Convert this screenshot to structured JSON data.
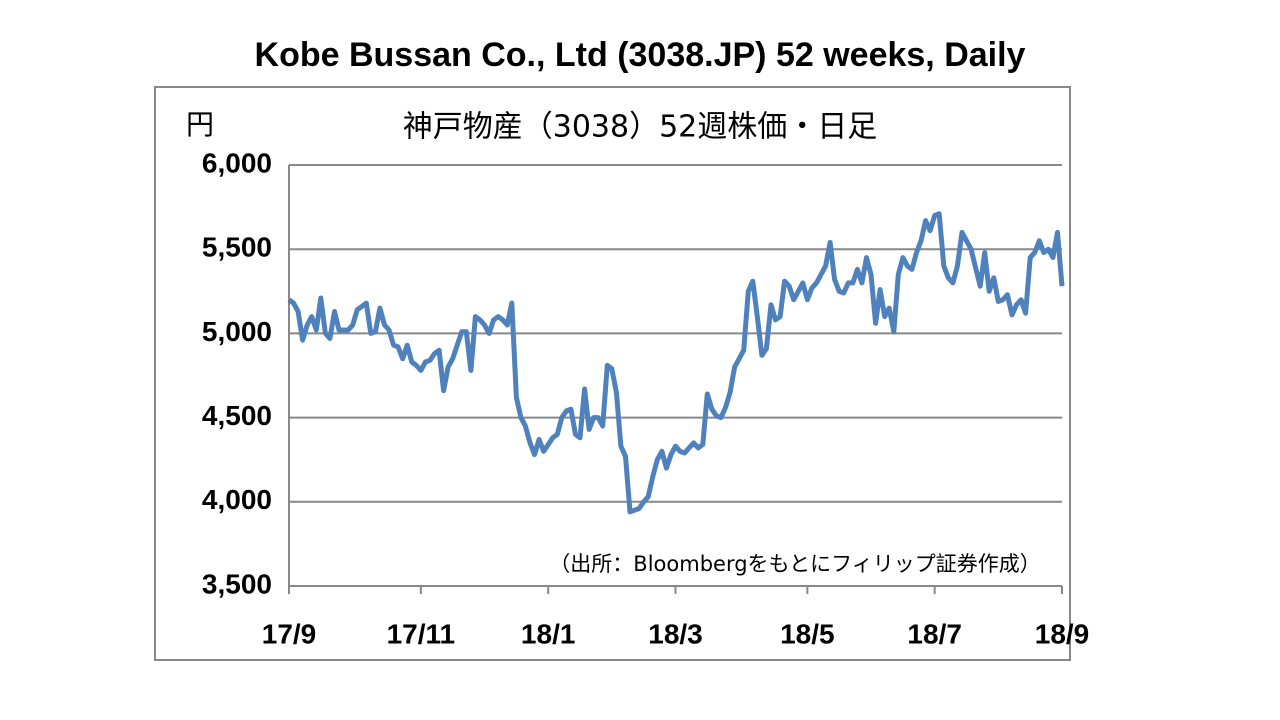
{
  "chart_data": {
    "type": "line",
    "title": "Kobe Bussan Co., Ltd (3038.JP) 52 weeks, Daily",
    "subtitle": "神戸物産（3038）52週株価・日足",
    "y_label": "円",
    "annotation": "（出所：Bloombergをもとにフィリップ証券作成）",
    "color": "#4f81bd",
    "grid": true,
    "values": [
      5200,
      5180,
      5130,
      4960,
      5050,
      5100,
      5020,
      5210,
      5000,
      4970,
      5130,
      5020,
      5020,
      5020,
      5050,
      5140,
      5160,
      5180,
      5000,
      5010,
      5150,
      5050,
      5020,
      4930,
      4920,
      4850,
      4930,
      4830,
      4810,
      4780,
      4830,
      4840,
      4880,
      4900,
      4660,
      4800,
      4850,
      4930,
      5010,
      5010,
      4780,
      5100,
      5080,
      5050,
      5000,
      5080,
      5100,
      5080,
      5050,
      5180,
      4620,
      4500,
      4450,
      4350,
      4280,
      4370,
      4300,
      4340,
      4380,
      4400,
      4500,
      4540,
      4550,
      4400,
      4380,
      4670,
      4430,
      4500,
      4500,
      4450,
      4810,
      4790,
      4650,
      4330,
      4270,
      3940,
      3950,
      3960,
      4000,
      4030,
      4150,
      4250,
      4300,
      4200,
      4280,
      4330,
      4300,
      4290,
      4320,
      4350,
      4320,
      4340,
      4640,
      4550,
      4510,
      4500,
      4560,
      4650,
      4800,
      4850,
      4900,
      5250,
      5310,
      5100,
      4870,
      4910,
      5170,
      5080,
      5100,
      5310,
      5280,
      5200,
      5250,
      5300,
      5200,
      5270,
      5300,
      5350,
      5400,
      5540,
      5320,
      5250,
      5240,
      5300,
      5300,
      5380,
      5300,
      5450,
      5350,
      5060,
      5260,
      5100,
      5150,
      5010,
      5350,
      5450,
      5400,
      5380,
      5480,
      5550,
      5670,
      5610,
      5700,
      5710,
      5400,
      5330,
      5300,
      5400,
      5600,
      5550,
      5500,
      5390,
      5280,
      5480,
      5250,
      5330,
      5190,
      5200,
      5230,
      5110,
      5170,
      5200,
      5120,
      5450,
      5480,
      5550,
      5480,
      5500,
      5450,
      5600,
      5280
    ],
    "xlim": [
      0,
      170
    ],
    "xticks": [
      {
        "value": 0,
        "label": "17/9"
      },
      {
        "value": 29,
        "label": "17/11"
      },
      {
        "value": 57,
        "label": "18/1"
      },
      {
        "value": 85,
        "label": "18/3"
      },
      {
        "value": 114,
        "label": "18/5"
      },
      {
        "value": 142,
        "label": "18/7"
      },
      {
        "value": 170,
        "label": "18/9"
      }
    ],
    "ylim": [
      3500,
      6000
    ],
    "yticks": [
      {
        "value": 3500,
        "label": "3,500"
      },
      {
        "value": 4000,
        "label": "4,000"
      },
      {
        "value": 4500,
        "label": "4,500"
      },
      {
        "value": 5000,
        "label": "5,000"
      },
      {
        "value": 5500,
        "label": "5,500"
      },
      {
        "value": 6000,
        "label": "6,000"
      }
    ]
  }
}
